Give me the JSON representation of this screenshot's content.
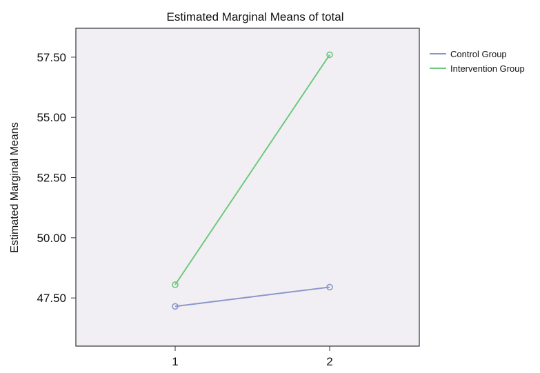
{
  "chart_data": {
    "type": "line",
    "title": "Estimated Marginal Means of total",
    "xlabel": "",
    "ylabel": "Estimated Marginal Means",
    "categories": [
      "1",
      "2"
    ],
    "ylim": [
      45.5,
      58.7
    ],
    "yticks": [
      "47.50",
      "50.00",
      "52.50",
      "55.00",
      "57.50"
    ],
    "grid": false,
    "legend": "right",
    "plot_background": "#f1eff4",
    "series": [
      {
        "name": "Control Group",
        "color": "#8a96c8",
        "values": [
          47.15,
          47.95
        ]
      },
      {
        "name": "Intervention Group",
        "color": "#6cc97c",
        "values": [
          48.05,
          57.6
        ]
      }
    ]
  }
}
